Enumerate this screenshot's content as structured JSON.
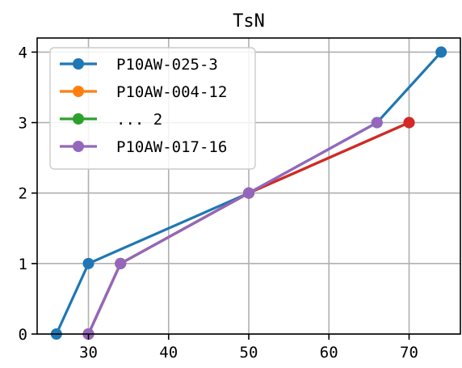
{
  "chart_data": {
    "type": "line",
    "title": "TsN",
    "xlabel": "",
    "ylabel": "",
    "xlim": [
      23.6,
      76.4
    ],
    "ylim": [
      0,
      4.2
    ],
    "xticks": [
      30,
      40,
      50,
      60,
      70
    ],
    "yticks": [
      0,
      1,
      2,
      3,
      4
    ],
    "grid": true,
    "legend_position": "upper-left",
    "series": [
      {
        "name": "P10AW-025-3",
        "color": "#1f77b4",
        "points": [
          [
            26,
            0
          ],
          [
            30,
            1
          ],
          [
            50,
            2
          ],
          [
            66,
            3
          ],
          [
            74,
            4
          ]
        ],
        "in_legend": true
      },
      {
        "name": "P10AW-004-12",
        "color": "#ff7f0e",
        "points": [
          [
            30,
            0
          ],
          [
            34,
            1
          ],
          [
            50,
            2
          ],
          [
            70,
            3
          ]
        ],
        "in_legend": true
      },
      {
        "name": "... 2",
        "color": "#2ca02c",
        "points": [
          [
            30,
            0
          ],
          [
            34,
            1
          ],
          [
            50,
            2
          ],
          [
            70,
            3
          ]
        ],
        "in_legend": true
      },
      {
        "name": "",
        "color": "#d62728",
        "points": [
          [
            30,
            0
          ],
          [
            34,
            1
          ],
          [
            50,
            2
          ],
          [
            70,
            3
          ]
        ],
        "in_legend": false
      },
      {
        "name": "P10AW-017-16",
        "color": "#9467bd",
        "points": [
          [
            30,
            0
          ],
          [
            34,
            1
          ],
          [
            50,
            2
          ],
          [
            66,
            3
          ]
        ],
        "in_legend": true
      }
    ]
  }
}
